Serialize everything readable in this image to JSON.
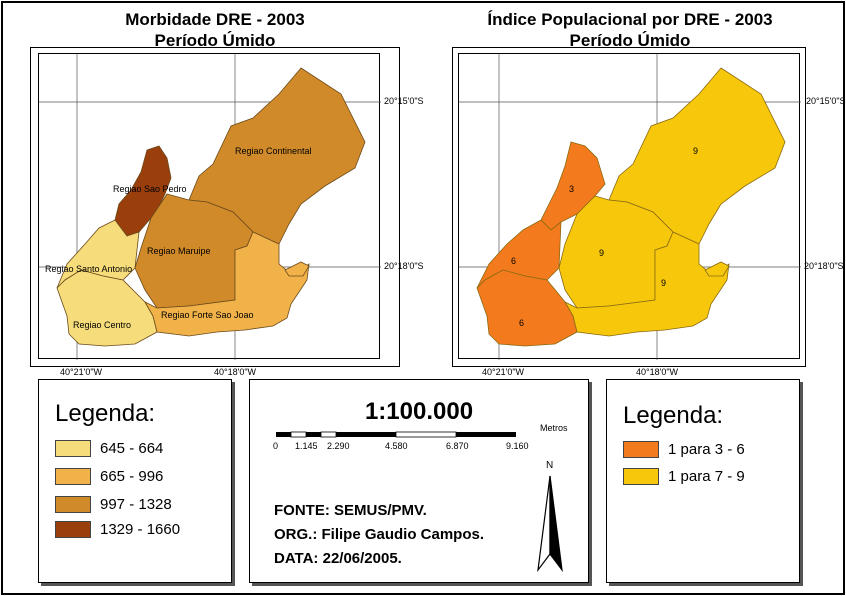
{
  "left_map": {
    "title_line1": "Morbidade DRE - 2003",
    "title_line2": "Período Úmido",
    "coord_top": "20°15'0\"S",
    "coord_mid": "20°18'0\"S",
    "coord_left": "40°21'0\"W",
    "coord_right": "40°18'0\"W",
    "regions": [
      {
        "name": "Regiao Continental",
        "color": "#d08a2a"
      },
      {
        "name": "Regiao Sao Pedro",
        "color": "#9a3f0c"
      },
      {
        "name": "Regiao Maruipe",
        "color": "#d08a2a"
      },
      {
        "name": "Regiao Santo Antonio",
        "color": "#f6dc7a"
      },
      {
        "name": "Regiao Centro",
        "color": "#f6dc7a"
      },
      {
        "name": "Regiao Forte Sao Joao",
        "color": "#f1b24a"
      }
    ]
  },
  "right_map": {
    "title_line1": "Índice Populacional por DRE - 2003",
    "title_line2": "Período Úmido",
    "coord_top": "20°15'0\"S",
    "coord_mid": "20°18'0\"S",
    "coord_left": "40°21'0\"W",
    "coord_right": "40°18'0\"W",
    "labels": [
      "9",
      "3",
      "9",
      "6",
      "9",
      "6"
    ]
  },
  "legend_left": {
    "title": "Legenda:",
    "items": [
      {
        "label": "645 - 664",
        "color": "#f6dc7a"
      },
      {
        "label": "665 - 996",
        "color": "#f1b24a"
      },
      {
        "label": "997 - 1328",
        "color": "#d08a2a"
      },
      {
        "label": "1329 - 1660",
        "color": "#9a3f0c"
      }
    ]
  },
  "scale_panel": {
    "scale": "1:100.000",
    "unit": "Metros",
    "ticks": [
      "0",
      "1.145",
      "2.290",
      "4.580",
      "6.870",
      "9.160"
    ],
    "north": "N",
    "fonte": "FONTE: SEMUS/PMV.",
    "org": "ORG.: Filipe Gaudio Campos.",
    "data": "DATA: 22/06/2005."
  },
  "legend_right": {
    "title": "Legenda:",
    "items": [
      {
        "label": "1 para 3 - 6",
        "color": "#f47a1e"
      },
      {
        "label": "1 para 7 - 9",
        "color": "#f7c70c"
      }
    ]
  }
}
